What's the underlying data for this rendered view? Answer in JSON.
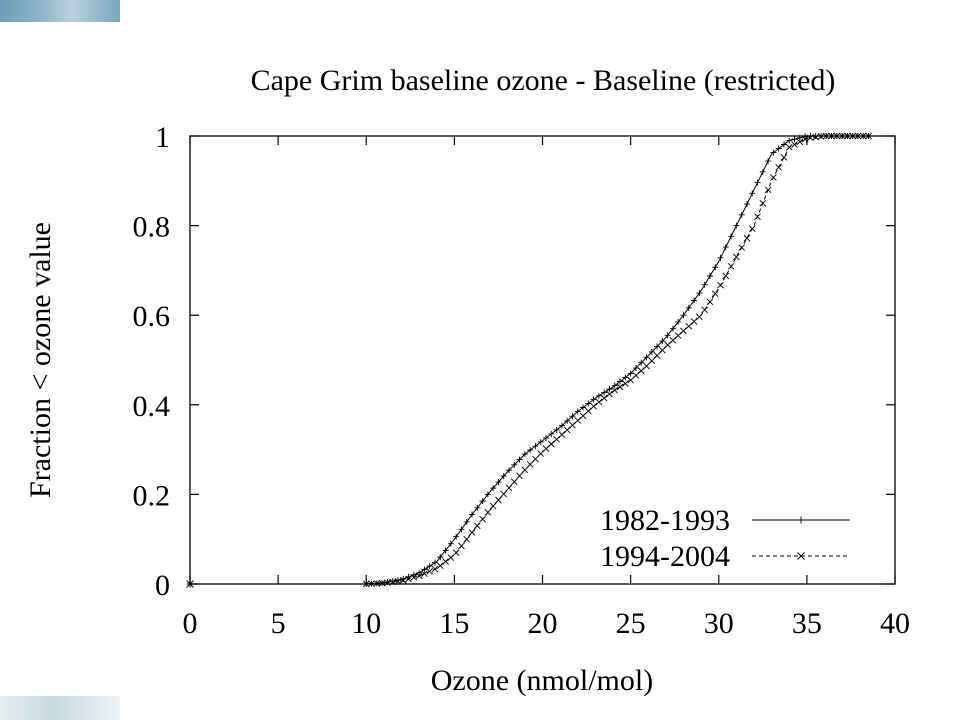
{
  "chart_data": {
    "type": "line",
    "title": "Cape Grim baseline ozone - Baseline (restricted)",
    "xlabel": "Ozone (nmol/mol)",
    "ylabel": "Fraction < ozone value",
    "xlim": [
      0,
      40
    ],
    "ylim": [
      0,
      1
    ],
    "x_ticks": [
      "0",
      "5",
      "10",
      "15",
      "20",
      "25",
      "30",
      "35",
      "40"
    ],
    "y_ticks": [
      "0",
      "0.2",
      "0.4",
      "0.6",
      "0.8",
      "1"
    ],
    "grid": false,
    "legend_position": "bottom-right",
    "series": [
      {
        "name": "1982-1993",
        "marker": "plus",
        "line_style": "solid",
        "x": [
          0,
          10,
          11,
          12,
          13,
          14,
          15,
          16,
          17,
          18,
          19,
          20,
          21,
          22,
          23,
          24,
          25,
          26,
          27,
          28,
          29,
          30,
          31,
          32,
          33,
          34,
          35,
          36,
          37,
          38.5
        ],
        "y": [
          0,
          0,
          0.003,
          0.01,
          0.025,
          0.05,
          0.1,
          0.155,
          0.205,
          0.25,
          0.29,
          0.32,
          0.35,
          0.385,
          0.415,
          0.44,
          0.47,
          0.51,
          0.55,
          0.6,
          0.655,
          0.72,
          0.8,
          0.88,
          0.96,
          0.99,
          1.0,
          1.0,
          1.0,
          1.0
        ]
      },
      {
        "name": "1994-2004",
        "marker": "cross",
        "line_style": "dashed",
        "x": [
          0,
          10,
          11,
          12,
          13,
          14,
          15,
          16,
          17,
          18,
          19,
          20,
          21,
          22,
          23,
          24,
          25,
          26,
          27,
          28,
          29,
          30,
          31,
          32,
          33,
          34,
          35,
          36,
          37,
          38.5
        ],
        "y": [
          0,
          0,
          0.002,
          0.007,
          0.018,
          0.035,
          0.065,
          0.115,
          0.165,
          0.21,
          0.255,
          0.295,
          0.33,
          0.365,
          0.4,
          0.43,
          0.455,
          0.49,
          0.53,
          0.565,
          0.6,
          0.66,
          0.73,
          0.8,
          0.9,
          0.975,
          0.995,
          1.0,
          1.0,
          1.0
        ]
      }
    ]
  }
}
